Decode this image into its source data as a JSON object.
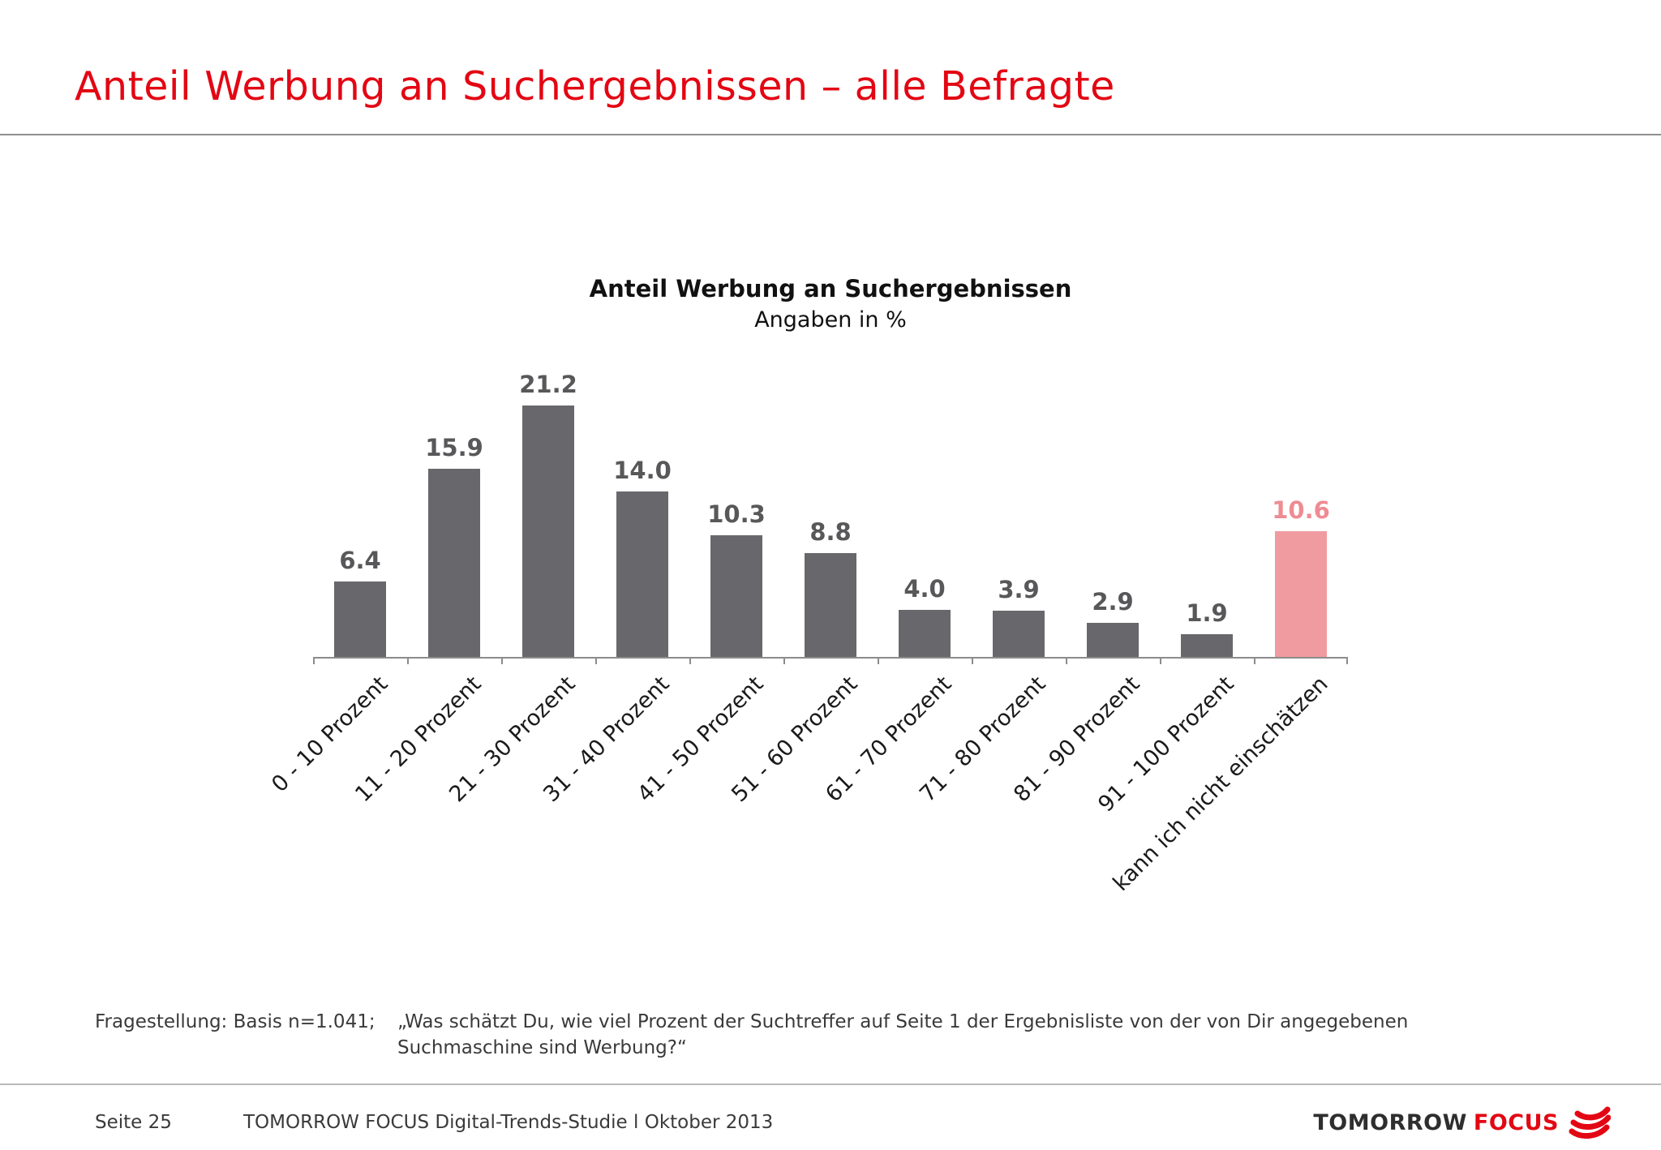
{
  "slide": {
    "title": "Anteil Werbung an Suchergebnissen – alle Befragte",
    "footnote": {
      "basis": "Fragestellung: Basis n=1.041;",
      "question": "„Was schätzt Du, wie viel Prozent der Suchtreffer auf Seite 1 der Ergebnisliste von der von Dir angegebenen Suchmaschine sind Werbung?“"
    },
    "footer": {
      "page": "Seite 25",
      "study": "TOMORROW FOCUS Digital-Trends-Studie l Oktober 2013",
      "logo": {
        "part1": "TOMORROW",
        "part2": "FOCUS",
        "swoosh_icon": "logo-swoosh-icon"
      }
    }
  },
  "chart_data": {
    "type": "bar",
    "title": "Anteil Werbung an Suchergebnissen",
    "subtitle": "Angaben in %",
    "categories": [
      "0 - 10 Prozent",
      "11 - 20 Prozent",
      "21 - 30 Prozent",
      "31 - 40 Prozent",
      "41 - 50 Prozent",
      "51 - 60 Prozent",
      "61 - 70 Prozent",
      "71 - 80 Prozent",
      "81 - 90 Prozent",
      "91 - 100 Prozent",
      "kann ich nicht einschätzen"
    ],
    "values": [
      6.4,
      15.9,
      21.2,
      14.0,
      10.3,
      8.8,
      4.0,
      3.9,
      2.9,
      1.9,
      10.6
    ],
    "highlight_index": 10,
    "ylim": [
      0,
      22
    ],
    "grid": false,
    "legend": false,
    "xlabel": "",
    "ylabel": "",
    "bar_color": "#68686c",
    "highlight_bar_color": "#f09ba0",
    "value_label_color": "#58585a",
    "highlight_value_label_color": "#ef8b92"
  },
  "colors": {
    "title_red": "#e30613",
    "divider_gray": "#8f8f8f",
    "axis_gray": "#8c8c8c",
    "logo_red": "#e30613"
  }
}
